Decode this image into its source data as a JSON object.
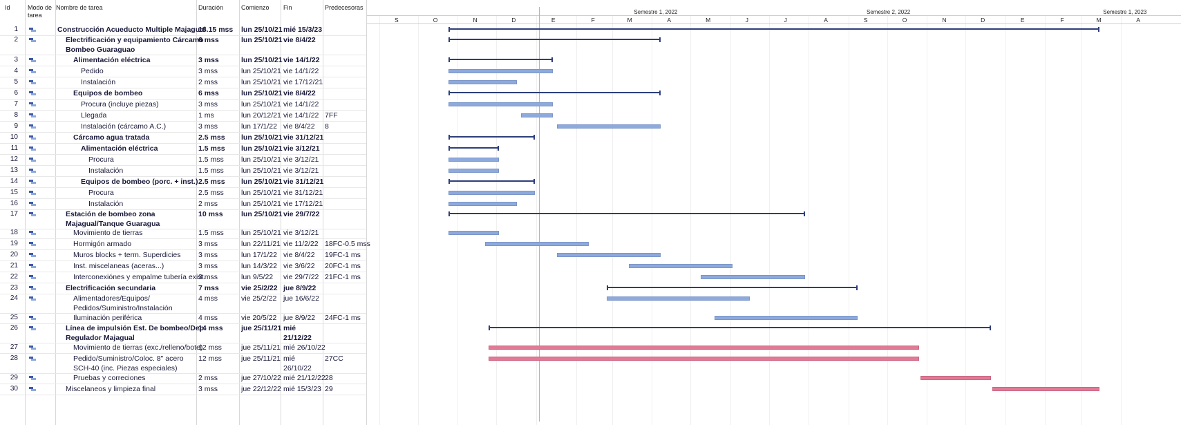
{
  "headers": {
    "id": "Id",
    "mode": "Modo de tarea",
    "name": "Nombre de tarea",
    "duration": "Duración",
    "start": "Comienzo",
    "finish": "Fin",
    "pred": "Predecesoras"
  },
  "timescale": {
    "semesters": [
      "Semestre 1, 2022",
      "Semestre 2, 2022",
      "Semestre 1, 2023"
    ],
    "months": [
      "S",
      "O",
      "N",
      "D",
      "E",
      "F",
      "M",
      "A",
      "M",
      "J",
      "J",
      "A",
      "S",
      "O",
      "N",
      "D",
      "E",
      "F",
      "M",
      "A"
    ]
  },
  "tasks": [
    {
      "id": "1",
      "name": "Construcción Acueducto Multiple Majagual",
      "name2": "",
      "duration": "18.15 mss",
      "start": "lun 25/10/21",
      "finish": "mié 15/3/23",
      "finish2": "",
      "pred": "",
      "level": 0,
      "bold": true
    },
    {
      "id": "2",
      "name": "Electrificación y equipamiento Cárcamo",
      "name2": "Bombeo Guaraguao",
      "duration": "6 mss",
      "start": "lun 25/10/21",
      "finish": "vie 8/4/22",
      "finish2": "",
      "pred": "",
      "level": 1,
      "bold": true
    },
    {
      "id": "3",
      "name": "Alimentación eléctrica",
      "name2": "",
      "duration": "3 mss",
      "start": "lun 25/10/21",
      "finish": "vie 14/1/22",
      "finish2": "",
      "pred": "",
      "level": 2,
      "bold": true
    },
    {
      "id": "4",
      "name": "Pedido",
      "name2": "",
      "duration": "3 mss",
      "start": "lun 25/10/21",
      "finish": "vie 14/1/22",
      "finish2": "",
      "pred": "",
      "level": 3,
      "bold": false
    },
    {
      "id": "5",
      "name": "Instalación",
      "name2": "",
      "duration": "2 mss",
      "start": "lun 25/10/21",
      "finish": "vie 17/12/21",
      "finish2": "",
      "pred": "",
      "level": 3,
      "bold": false
    },
    {
      "id": "6",
      "name": "Equipos de bombeo",
      "name2": "",
      "duration": "6 mss",
      "start": "lun 25/10/21",
      "finish": "vie 8/4/22",
      "finish2": "",
      "pred": "",
      "level": 2,
      "bold": true
    },
    {
      "id": "7",
      "name": "Procura (incluye piezas)",
      "name2": "",
      "duration": "3 mss",
      "start": "lun 25/10/21",
      "finish": "vie 14/1/22",
      "finish2": "",
      "pred": "",
      "level": 3,
      "bold": false
    },
    {
      "id": "8",
      "name": "Llegada",
      "name2": "",
      "duration": "1 ms",
      "start": "lun 20/12/21",
      "finish": "vie 14/1/22",
      "finish2": "",
      "pred": "7FF",
      "level": 3,
      "bold": false
    },
    {
      "id": "9",
      "name": "Instalación (cárcamo A.C.)",
      "name2": "",
      "duration": "3 mss",
      "start": "lun 17/1/22",
      "finish": "vie 8/4/22",
      "finish2": "",
      "pred": "8",
      "level": 3,
      "bold": false
    },
    {
      "id": "10",
      "name": "Cárcamo agua tratada",
      "name2": "",
      "duration": "2.5 mss",
      "start": "lun 25/10/21",
      "finish": "vie 31/12/21",
      "finish2": "",
      "pred": "",
      "level": 2,
      "bold": true
    },
    {
      "id": "11",
      "name": "Alimentación eléctrica",
      "name2": "",
      "duration": "1.5 mss",
      "start": "lun 25/10/21",
      "finish": "vie 3/12/21",
      "finish2": "",
      "pred": "",
      "level": 3,
      "bold": true
    },
    {
      "id": "12",
      "name": "Procura",
      "name2": "",
      "duration": "1.5 mss",
      "start": "lun 25/10/21",
      "finish": "vie 3/12/21",
      "finish2": "",
      "pred": "",
      "level": 4,
      "bold": false
    },
    {
      "id": "13",
      "name": "Instalación",
      "name2": "",
      "duration": "1.5 mss",
      "start": "lun 25/10/21",
      "finish": "vie 3/12/21",
      "finish2": "",
      "pred": "",
      "level": 4,
      "bold": false
    },
    {
      "id": "14",
      "name": "Equipos de bombeo (porc. + inst.)",
      "name2": "",
      "duration": "2.5 mss",
      "start": "lun 25/10/21",
      "finish": "vie 31/12/21",
      "finish2": "",
      "pred": "",
      "level": 3,
      "bold": true
    },
    {
      "id": "15",
      "name": "Procura",
      "name2": "",
      "duration": "2.5 mss",
      "start": "lun 25/10/21",
      "finish": "vie 31/12/21",
      "finish2": "",
      "pred": "",
      "level": 4,
      "bold": false
    },
    {
      "id": "16",
      "name": "Instalación",
      "name2": "",
      "duration": "2 mss",
      "start": "lun 25/10/21",
      "finish": "vie 17/12/21",
      "finish2": "",
      "pred": "",
      "level": 4,
      "bold": false
    },
    {
      "id": "17",
      "name": "Estación de bombeo zona",
      "name2": "Majagual/Tanque Guaragua",
      "duration": "10 mss",
      "start": "lun 25/10/21",
      "finish": "vie 29/7/22",
      "finish2": "",
      "pred": "",
      "level": 1,
      "bold": true
    },
    {
      "id": "18",
      "name": "Movimiento de tierras",
      "name2": "",
      "duration": "1.5 mss",
      "start": "lun 25/10/21",
      "finish": "vie 3/12/21",
      "finish2": "",
      "pred": "",
      "level": 2,
      "bold": false
    },
    {
      "id": "19",
      "name": "Hormigón armado",
      "name2": "",
      "duration": "3 mss",
      "start": "lun 22/11/21",
      "finish": "vie 11/2/22",
      "finish2": "",
      "pred": "18FC-0.5 mss",
      "level": 2,
      "bold": false
    },
    {
      "id": "20",
      "name": "Muros blocks + term. Superdicies",
      "name2": "",
      "duration": "3 mss",
      "start": "lun 17/1/22",
      "finish": "vie 8/4/22",
      "finish2": "",
      "pred": "19FC-1 ms",
      "level": 2,
      "bold": false
    },
    {
      "id": "21",
      "name": "Inst. miscelaneas (aceras...)",
      "name2": "",
      "duration": "3 mss",
      "start": "lun 14/3/22",
      "finish": "vie 3/6/22",
      "finish2": "",
      "pred": "20FC-1 ms",
      "level": 2,
      "bold": false
    },
    {
      "id": "22",
      "name": "Interconexiónes y empalme tubería exist.",
      "name2": "",
      "duration": "3 mss",
      "start": "lun 9/5/22",
      "finish": "vie 29/7/22",
      "finish2": "",
      "pred": "21FC-1 ms",
      "level": 2,
      "bold": false
    },
    {
      "id": "23",
      "name": "Electrificación secundaria",
      "name2": "",
      "duration": "7 mss",
      "start": "vie 25/2/22",
      "finish": "jue 8/9/22",
      "finish2": "",
      "pred": "",
      "level": 1,
      "bold": true
    },
    {
      "id": "24",
      "name": "Alimentadores/Equipos/",
      "name2": "Pedidos/Suministro/Instalación",
      "duration": "4 mss",
      "start": "vie 25/2/22",
      "finish": "jue 16/6/22",
      "finish2": "",
      "pred": "",
      "level": 2,
      "bold": false
    },
    {
      "id": "25",
      "name": "Iluminación periférica",
      "name2": "",
      "duration": "4 mss",
      "start": "vie 20/5/22",
      "finish": "jue 8/9/22",
      "finish2": "",
      "pred": "24FC-1 ms",
      "level": 2,
      "bold": false
    },
    {
      "id": "26",
      "name": "Línea de impulsión Est. De bombeo/Dep.",
      "name2": "Regulador Majagual",
      "duration": "14 mss",
      "start": "jue 25/11/21",
      "finish": "mié",
      "finish2": "21/12/22",
      "pred": "",
      "level": 1,
      "bold": true
    },
    {
      "id": "27",
      "name": "Movimiento de tierras (exc./relleno/bote)",
      "name2": "",
      "duration": "12 mss",
      "start": "jue 25/11/21",
      "finish": "mié 26/10/22",
      "finish2": "",
      "pred": "",
      "level": 2,
      "bold": false
    },
    {
      "id": "28",
      "name": "Pedido/Suministro/Coloc. 8\" acero",
      "name2": "SCH-40 (inc. Piezas especiales)",
      "duration": "12 mss",
      "start": "jue 25/11/21",
      "finish": "mié",
      "finish2": "26/10/22",
      "pred": "27CC",
      "level": 2,
      "bold": false
    },
    {
      "id": "29",
      "name": "Pruebas y correciones",
      "name2": "",
      "duration": "2 mss",
      "start": "jue 27/10/22",
      "finish": "mié 21/12/22",
      "finish2": "",
      "pred": "28",
      "level": 2,
      "bold": false
    },
    {
      "id": "30",
      "name": "Miscelaneos y limpieza final",
      "name2": "",
      "duration": "3 mss",
      "start": "jue 22/12/22",
      "finish": "mié 15/3/23",
      "finish2": "",
      "pred": "29",
      "level": 1,
      "bold": false
    }
  ],
  "gantt": [
    {
      "s": "2021-10-25",
      "f": "2023-03-15",
      "kind": "summary"
    },
    {
      "s": "2021-10-25",
      "f": "2022-04-08",
      "kind": "summary"
    },
    {
      "s": "2021-10-25",
      "f": "2022-01-14",
      "kind": "summary"
    },
    {
      "s": "2021-10-25",
      "f": "2022-01-14",
      "kind": "task"
    },
    {
      "s": "2021-10-25",
      "f": "2021-12-17",
      "kind": "task"
    },
    {
      "s": "2021-10-25",
      "f": "2022-04-08",
      "kind": "summary"
    },
    {
      "s": "2021-10-25",
      "f": "2022-01-14",
      "kind": "task"
    },
    {
      "s": "2021-12-20",
      "f": "2022-01-14",
      "kind": "task"
    },
    {
      "s": "2022-01-17",
      "f": "2022-04-08",
      "kind": "task"
    },
    {
      "s": "2021-10-25",
      "f": "2021-12-31",
      "kind": "summary"
    },
    {
      "s": "2021-10-25",
      "f": "2021-12-03",
      "kind": "summary"
    },
    {
      "s": "2021-10-25",
      "f": "2021-12-03",
      "kind": "task"
    },
    {
      "s": "2021-10-25",
      "f": "2021-12-03",
      "kind": "task"
    },
    {
      "s": "2021-10-25",
      "f": "2021-12-31",
      "kind": "summary"
    },
    {
      "s": "2021-10-25",
      "f": "2021-12-31",
      "kind": "task"
    },
    {
      "s": "2021-10-25",
      "f": "2021-12-17",
      "kind": "task"
    },
    {
      "s": "2021-10-25",
      "f": "2022-07-29",
      "kind": "summary"
    },
    {
      "s": "2021-10-25",
      "f": "2021-12-03",
      "kind": "task"
    },
    {
      "s": "2021-11-22",
      "f": "2022-02-11",
      "kind": "task"
    },
    {
      "s": "2022-01-17",
      "f": "2022-04-08",
      "kind": "task"
    },
    {
      "s": "2022-03-14",
      "f": "2022-06-03",
      "kind": "task"
    },
    {
      "s": "2022-05-09",
      "f": "2022-07-29",
      "kind": "task"
    },
    {
      "s": "2022-02-25",
      "f": "2022-09-08",
      "kind": "summary"
    },
    {
      "s": "2022-02-25",
      "f": "2022-06-16",
      "kind": "task"
    },
    {
      "s": "2022-05-20",
      "f": "2022-09-08",
      "kind": "task"
    },
    {
      "s": "2021-11-25",
      "f": "2022-12-21",
      "kind": "summary"
    },
    {
      "s": "2021-11-25",
      "f": "2022-10-26",
      "kind": "critical"
    },
    {
      "s": "2021-11-25",
      "f": "2022-10-26",
      "kind": "critical"
    },
    {
      "s": "2022-10-27",
      "f": "2022-12-21",
      "kind": "critical"
    },
    {
      "s": "2022-12-22",
      "f": "2023-03-15",
      "kind": "critical"
    }
  ],
  "colors": {
    "task": "#8ea9dc",
    "critical": "#e07a95",
    "summary": "#2d3e7a"
  }
}
